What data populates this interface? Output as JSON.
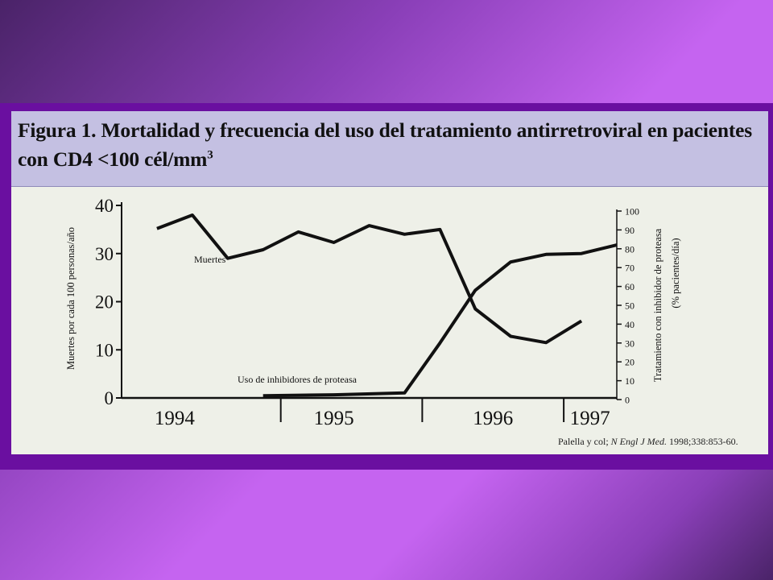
{
  "title": {
    "main": "Figura 1. Mortalidad y frecuencia del uso del tratamiento antirretroviral en pacientes con CD4 <100 cél/mm",
    "superscript": "3"
  },
  "citation": {
    "authors": "Palella y col; ",
    "journal": "N Engl J Med.",
    "details": " 1998;338:853-60."
  },
  "colors": {
    "background_gradient_dark": "#4a2368",
    "background_gradient_light": "#c564f0",
    "band": "#6a0fa0",
    "card": "#eef0e8",
    "title_bar": "#c4c0e2",
    "ink": "#111111"
  },
  "chart_data": {
    "type": "line",
    "x_groups": [
      "1994",
      "1995",
      "1996",
      "1997"
    ],
    "x_range": [
      1993.75,
      1997.25
    ],
    "left_axis": {
      "label": "Muertes por cada 100 personas/año",
      "ticks": [
        0,
        10,
        20,
        30,
        40
      ],
      "ylim": [
        0,
        40
      ]
    },
    "right_axis": {
      "label_line1": "Tratamiento con inhibidor de proteasa",
      "label_line2": "(% pacientes/día)",
      "ticks": [
        0,
        10,
        20,
        30,
        40,
        50,
        60,
        70,
        80,
        90,
        100
      ],
      "ylim": [
        0,
        100
      ]
    },
    "grid": false,
    "series": [
      {
        "name": "Muertes",
        "axis": "left",
        "points": [
          [
            1994.0,
            35.2
          ],
          [
            1994.25,
            38.0
          ],
          [
            1994.5,
            29.0
          ],
          [
            1994.75,
            30.8
          ],
          [
            1995.0,
            34.5
          ],
          [
            1995.25,
            32.3
          ],
          [
            1995.5,
            35.8
          ],
          [
            1995.75,
            34.0
          ],
          [
            1996.0,
            35.0
          ],
          [
            1996.25,
            18.5
          ],
          [
            1996.5,
            12.8
          ],
          [
            1996.75,
            11.5
          ],
          [
            1997.0,
            16.0
          ]
        ]
      },
      {
        "name": "Uso de inhibidores de proteasa",
        "axis": "right",
        "points": [
          [
            1994.75,
            2
          ],
          [
            1995.25,
            2.5
          ],
          [
            1995.75,
            3.5
          ],
          [
            1996.0,
            30
          ],
          [
            1996.25,
            58
          ],
          [
            1996.5,
            73
          ],
          [
            1996.75,
            77
          ],
          [
            1997.0,
            77.5
          ],
          [
            1997.25,
            82
          ]
        ]
      }
    ]
  }
}
